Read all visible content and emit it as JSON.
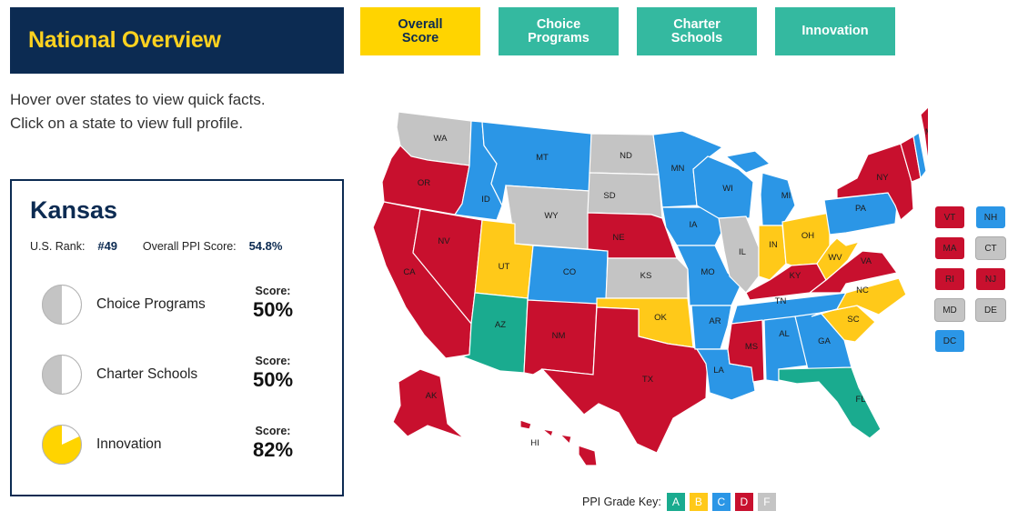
{
  "header": {
    "title": "National Overview"
  },
  "tabs": [
    {
      "label": "Overall\nScore",
      "line1": "Overall",
      "line2": "Score",
      "active": true
    },
    {
      "label": "Choice\nPrograms",
      "line1": "Choice",
      "line2": "Programs",
      "active": false
    },
    {
      "label": "Charter\nSchools",
      "line1": "Charter",
      "line2": "Schools",
      "active": false
    },
    {
      "label": "Innovation",
      "line1": "Innovation",
      "line2": "",
      "active": false
    }
  ],
  "hint": {
    "line1": "Hover over states to view quick facts.",
    "line2": "Click on a state to view full profile."
  },
  "panel": {
    "state": "Kansas",
    "rank_label": "U.S. Rank:",
    "rank_value": "#49",
    "ppi_label": "Overall PPI Score:",
    "ppi_value": "54.8%",
    "score_label": "Score:",
    "metrics": [
      {
        "name": "Choice Programs",
        "score": "50%",
        "fraction": 0.5,
        "fill": "#c4c4c4"
      },
      {
        "name": "Charter Schools",
        "score": "50%",
        "fraction": 0.5,
        "fill": "#c4c4c4"
      },
      {
        "name": "Innovation",
        "score": "82%",
        "fraction": 0.82,
        "fill": "#ffd400"
      }
    ]
  },
  "grade_colors": {
    "A": "#1aab8f",
    "B": "#ffc919",
    "C": "#2b96e6",
    "D": "#c8102e",
    "F": "#c4c4c4"
  },
  "states": [
    {
      "abbr": "WA",
      "grade": "F"
    },
    {
      "abbr": "OR",
      "grade": "D"
    },
    {
      "abbr": "CA",
      "grade": "D"
    },
    {
      "abbr": "NV",
      "grade": "D"
    },
    {
      "abbr": "ID",
      "grade": "C"
    },
    {
      "abbr": "MT",
      "grade": "C"
    },
    {
      "abbr": "WY",
      "grade": "F"
    },
    {
      "abbr": "UT",
      "grade": "B"
    },
    {
      "abbr": "AZ",
      "grade": "A"
    },
    {
      "abbr": "CO",
      "grade": "C"
    },
    {
      "abbr": "NM",
      "grade": "D"
    },
    {
      "abbr": "ND",
      "grade": "F"
    },
    {
      "abbr": "SD",
      "grade": "F"
    },
    {
      "abbr": "NE",
      "grade": "D"
    },
    {
      "abbr": "KS",
      "grade": "F"
    },
    {
      "abbr": "OK",
      "grade": "B"
    },
    {
      "abbr": "TX",
      "grade": "D"
    },
    {
      "abbr": "MN",
      "grade": "C"
    },
    {
      "abbr": "IA",
      "grade": "C"
    },
    {
      "abbr": "MO",
      "grade": "C"
    },
    {
      "abbr": "AR",
      "grade": "C"
    },
    {
      "abbr": "LA",
      "grade": "C"
    },
    {
      "abbr": "WI",
      "grade": "C"
    },
    {
      "abbr": "IL",
      "grade": "F"
    },
    {
      "abbr": "MI",
      "grade": "C"
    },
    {
      "abbr": "IN",
      "grade": "B"
    },
    {
      "abbr": "OH",
      "grade": "B"
    },
    {
      "abbr": "KY",
      "grade": "D"
    },
    {
      "abbr": "TN",
      "grade": "C"
    },
    {
      "abbr": "MS",
      "grade": "D"
    },
    {
      "abbr": "AL",
      "grade": "C"
    },
    {
      "abbr": "GA",
      "grade": "C"
    },
    {
      "abbr": "FL",
      "grade": "A"
    },
    {
      "abbr": "SC",
      "grade": "B"
    },
    {
      "abbr": "NC",
      "grade": "B"
    },
    {
      "abbr": "VA",
      "grade": "D"
    },
    {
      "abbr": "WV",
      "grade": "B"
    },
    {
      "abbr": "PA",
      "grade": "C"
    },
    {
      "abbr": "NY",
      "grade": "D"
    },
    {
      "abbr": "ME",
      "grade": "D"
    },
    {
      "abbr": "AK",
      "grade": "D"
    },
    {
      "abbr": "HI",
      "grade": "D"
    }
  ],
  "small_states": [
    {
      "abbr": "VT",
      "grade": "D"
    },
    {
      "abbr": "NH",
      "grade": "C"
    },
    {
      "abbr": "MA",
      "grade": "D"
    },
    {
      "abbr": "CT",
      "grade": "F"
    },
    {
      "abbr": "RI",
      "grade": "D"
    },
    {
      "abbr": "NJ",
      "grade": "D"
    },
    {
      "abbr": "MD",
      "grade": "F"
    },
    {
      "abbr": "DE",
      "grade": "F"
    },
    {
      "abbr": "DC",
      "grade": "C"
    }
  ],
  "grade_key": {
    "label": "PPI Grade Key:",
    "grades": [
      "A",
      "B",
      "C",
      "D",
      "F"
    ]
  }
}
